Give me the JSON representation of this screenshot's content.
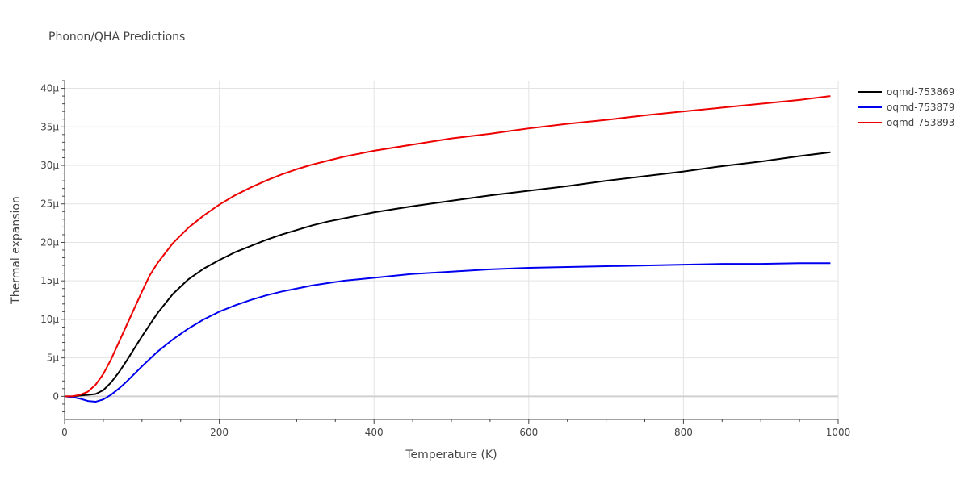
{
  "chart_data": {
    "type": "line",
    "title": "Phonon/QHA Predictions",
    "xlabel": "Temperature (K)",
    "ylabel": "Thermal expansion",
    "xlim": [
      0,
      1000
    ],
    "ylim": [
      -3e-06,
      4.1e-05
    ],
    "x_ticks": [
      0,
      200,
      400,
      600,
      800,
      1000
    ],
    "x_tick_labels": [
      "0",
      "200",
      "400",
      "600",
      "800",
      "1000"
    ],
    "y_ticks": [
      0,
      5e-06,
      1e-05,
      1.5e-05,
      2e-05,
      2.5e-05,
      3e-05,
      3.5e-05,
      4e-05
    ],
    "y_tick_labels": [
      "0",
      "5μ",
      "10μ",
      "15μ",
      "20μ",
      "25μ",
      "30μ",
      "35μ",
      "40μ"
    ],
    "grid": true,
    "legend_position": "top-right",
    "series": [
      {
        "name": "oqmd-753869",
        "color": "#000000",
        "x": [
          0,
          10,
          20,
          30,
          40,
          50,
          60,
          70,
          80,
          90,
          100,
          120,
          140,
          160,
          180,
          200,
          220,
          240,
          260,
          280,
          300,
          320,
          340,
          360,
          380,
          400,
          450,
          500,
          550,
          600,
          650,
          700,
          750,
          800,
          850,
          900,
          950,
          990
        ],
        "y": [
          0,
          0,
          1e-07,
          2e-07,
          3e-07,
          8e-07,
          1.8e-06,
          3.1e-06,
          4.6e-06,
          6.2e-06,
          7.8e-06,
          1.08e-05,
          1.33e-05,
          1.52e-05,
          1.66e-05,
          1.77e-05,
          1.87e-05,
          1.95e-05,
          2.03e-05,
          2.1e-05,
          2.16e-05,
          2.22e-05,
          2.27e-05,
          2.31e-05,
          2.35e-05,
          2.39e-05,
          2.47e-05,
          2.54e-05,
          2.61e-05,
          2.67e-05,
          2.73e-05,
          2.8e-05,
          2.86e-05,
          2.92e-05,
          2.99e-05,
          3.05e-05,
          3.12e-05,
          3.17e-05
        ]
      },
      {
        "name": "oqmd-753879",
        "color": "#0000ee",
        "x": [
          0,
          10,
          20,
          30,
          40,
          50,
          60,
          70,
          80,
          90,
          100,
          120,
          140,
          160,
          180,
          200,
          220,
          240,
          260,
          280,
          300,
          320,
          340,
          360,
          380,
          400,
          450,
          500,
          550,
          600,
          650,
          700,
          750,
          800,
          850,
          900,
          950,
          990
        ],
        "y": [
          0,
          -1e-07,
          -3e-07,
          -6e-07,
          -7e-07,
          -4e-07,
          2e-07,
          1e-06,
          1.9e-06,
          2.9e-06,
          3.9e-06,
          5.8e-06,
          7.4e-06,
          8.8e-06,
          1e-05,
          1.1e-05,
          1.18e-05,
          1.25e-05,
          1.31e-05,
          1.36e-05,
          1.4e-05,
          1.44e-05,
          1.47e-05,
          1.5e-05,
          1.52e-05,
          1.54e-05,
          1.59e-05,
          1.62e-05,
          1.65e-05,
          1.67e-05,
          1.68e-05,
          1.69e-05,
          1.7e-05,
          1.71e-05,
          1.72e-05,
          1.72e-05,
          1.73e-05,
          1.73e-05
        ]
      },
      {
        "name": "oqmd-753893",
        "color": "#ee0000",
        "x": [
          0,
          10,
          20,
          30,
          40,
          50,
          60,
          70,
          80,
          90,
          100,
          110,
          120,
          140,
          160,
          180,
          200,
          220,
          240,
          260,
          280,
          300,
          320,
          340,
          360,
          380,
          400,
          450,
          500,
          550,
          600,
          650,
          700,
          750,
          800,
          850,
          900,
          950,
          990
        ],
        "y": [
          0,
          0,
          2e-07,
          6e-07,
          1.5e-06,
          2.9e-06,
          4.8e-06,
          7e-06,
          9.2e-06,
          1.14e-05,
          1.36e-05,
          1.57e-05,
          1.73e-05,
          1.99e-05,
          2.19e-05,
          2.35e-05,
          2.49e-05,
          2.61e-05,
          2.71e-05,
          2.8e-05,
          2.88e-05,
          2.95e-05,
          3.01e-05,
          3.06e-05,
          3.11e-05,
          3.15e-05,
          3.19e-05,
          3.27e-05,
          3.35e-05,
          3.41e-05,
          3.48e-05,
          3.54e-05,
          3.59e-05,
          3.65e-05,
          3.7e-05,
          3.75e-05,
          3.8e-05,
          3.85e-05,
          3.9e-05
        ]
      }
    ]
  }
}
